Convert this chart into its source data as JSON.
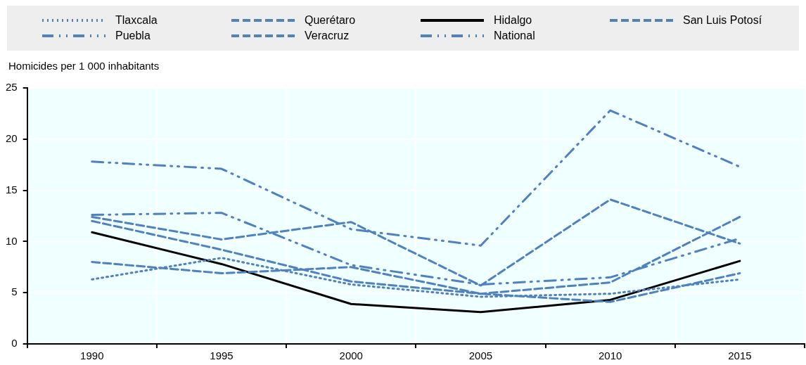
{
  "chart_data": {
    "type": "line",
    "ylabel": "Homicides per 1 000 inhabitants",
    "categories": [
      "1990",
      "1995",
      "2000",
      "2005",
      "2010",
      "2015"
    ],
    "series": [
      {
        "name": "Tlaxcala",
        "color": "#4f81bd",
        "line_style": "dotted",
        "values": [
          6.3,
          8.4,
          5.8,
          4.6,
          4.9,
          6.3
        ]
      },
      {
        "name": "Querétaro",
        "color": "#4f81bd",
        "line_style": "dashed",
        "values": [
          8.0,
          6.9,
          7.5,
          4.9,
          4.1,
          6.9
        ]
      },
      {
        "name": "Hidalgo",
        "color": "#000000",
        "line_style": "solid",
        "values": [
          10.9,
          7.8,
          3.9,
          3.1,
          4.3,
          8.1
        ]
      },
      {
        "name": "San Luis Potosí",
        "color": "#4f81bd",
        "line_style": "dashed",
        "values": [
          12.4,
          10.2,
          11.9,
          5.7,
          14.1,
          9.8
        ]
      },
      {
        "name": "Puebla",
        "color": "#4f81bd",
        "line_style": "dashdot",
        "values": [
          12.6,
          12.8,
          7.7,
          5.8,
          6.5,
          10.3
        ]
      },
      {
        "name": "Veracruz",
        "color": "#4f81bd",
        "line_style": "dashed",
        "values": [
          12.0,
          9.2,
          6.1,
          4.9,
          6.0,
          12.4
        ]
      },
      {
        "name": "National",
        "color": "#4f81bd",
        "line_style": "dashdot",
        "values": [
          17.8,
          17.1,
          11.2,
          9.6,
          22.8,
          17.3
        ]
      }
    ],
    "ylim": [
      0,
      25
    ],
    "yticks": [
      0,
      5,
      10,
      15,
      20,
      25
    ],
    "grid": true,
    "legend": "top",
    "marker": "none"
  }
}
